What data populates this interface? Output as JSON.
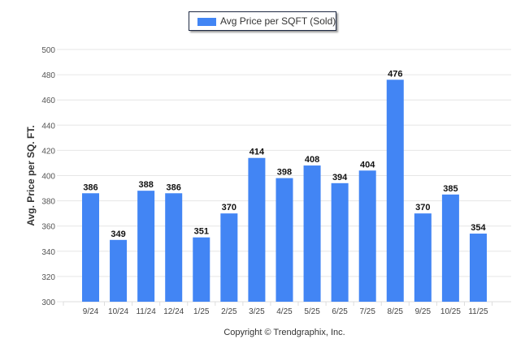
{
  "chart_data": {
    "type": "bar",
    "title": "",
    "xlabel": "",
    "ylabel": "Avg. Price per SQ. FT.",
    "legend": {
      "entries": [
        "Avg Price per SQFT (Sold)"
      ],
      "placement": "top-center"
    },
    "categories": [
      "9/24",
      "10/24",
      "11/24",
      "12/24",
      "1/25",
      "2/25",
      "3/25",
      "4/25",
      "5/25",
      "6/25",
      "7/25",
      "8/25",
      "9/25",
      "10/25",
      "11/25"
    ],
    "series": [
      {
        "name": "Avg Price per SQFT (Sold)",
        "values": [
          386,
          349,
          388,
          386,
          351,
          370,
          414,
          398,
          408,
          394,
          404,
          476,
          370,
          385,
          354
        ]
      }
    ],
    "ylim": [
      300,
      500
    ],
    "yticks": [
      300,
      320,
      340,
      360,
      380,
      400,
      420,
      440,
      460,
      480,
      500
    ],
    "grid": true,
    "colors": {
      "bar": "#4285f4",
      "grid": "#e6e6e6"
    },
    "footer": "Copyright © Trendgraphix, Inc."
  }
}
